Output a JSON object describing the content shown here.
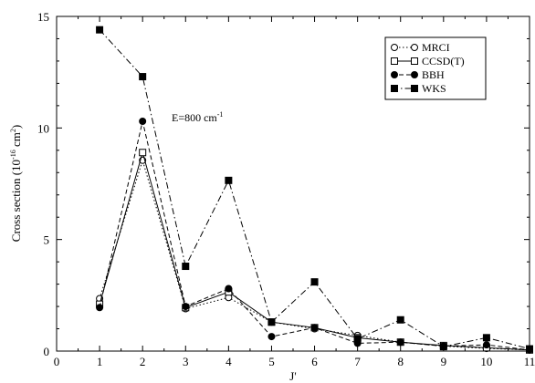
{
  "chart_data": {
    "type": "line",
    "xlabel": "J'",
    "ylabel_parts": {
      "main": "Cross section (10",
      "exp1": "-16",
      "mid": " cm",
      "exp2": "2",
      "end": ")"
    },
    "annotation": {
      "main": "E=800 cm",
      "exp": "-1"
    },
    "xlim": [
      0,
      11
    ],
    "ylim": [
      0,
      15
    ],
    "x_ticks": [
      0,
      1,
      2,
      3,
      4,
      5,
      6,
      7,
      8,
      9,
      10,
      11
    ],
    "y_ticks": [
      0,
      5,
      10,
      15
    ],
    "x_tick_labels": [
      "0",
      "1",
      "2",
      "3",
      "4",
      "5",
      "6",
      "7",
      "8",
      "9",
      "10",
      "11"
    ],
    "y_tick_labels": [
      "0",
      "5",
      "10",
      "15"
    ],
    "grid": false,
    "legend_position": "top-right",
    "series": [
      {
        "name": "MRCI",
        "marker": "open-circle",
        "line": "dotted",
        "x": [
          1,
          2,
          3,
          4,
          5,
          6,
          7,
          8,
          9,
          10,
          11
        ],
        "y": [
          2.35,
          8.55,
          1.9,
          2.4,
          1.3,
          1.0,
          0.7,
          0.4,
          0.22,
          0.12,
          0.05
        ]
      },
      {
        "name": "CCSD(T)",
        "marker": "open-square",
        "line": "solid",
        "x": [
          1,
          2,
          3,
          4,
          5,
          6,
          7,
          8,
          9,
          10,
          11
        ],
        "y": [
          2.1,
          8.9,
          1.95,
          2.65,
          1.3,
          1.05,
          0.6,
          0.4,
          0.25,
          0.15,
          0.05
        ]
      },
      {
        "name": "BBH",
        "marker": "filled-circle",
        "line": "dashed",
        "x": [
          1,
          2,
          3,
          4,
          5,
          6,
          7,
          8,
          9,
          10,
          11
        ],
        "y": [
          1.95,
          10.3,
          2.0,
          2.8,
          0.65,
          1.05,
          0.35,
          0.4,
          0.22,
          0.28,
          0.05
        ]
      },
      {
        "name": "WKS",
        "marker": "filled-square",
        "line": "dashdot",
        "x": [
          1,
          2,
          3,
          4,
          5,
          6,
          7,
          8,
          9,
          10,
          11
        ],
        "y": [
          14.4,
          12.3,
          3.8,
          7.65,
          1.3,
          3.1,
          0.55,
          1.4,
          0.2,
          0.6,
          0.1
        ]
      }
    ]
  }
}
